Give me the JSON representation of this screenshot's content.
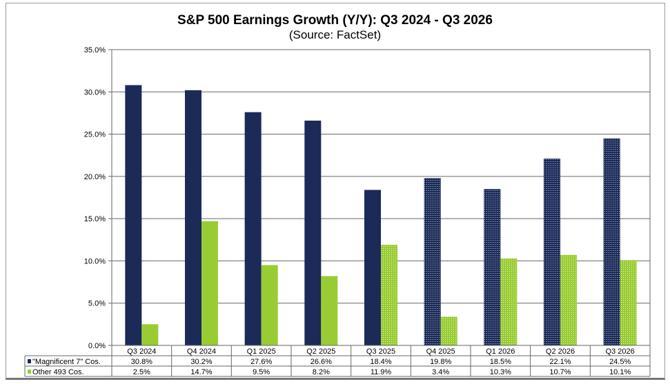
{
  "chart_data": {
    "type": "bar",
    "title": "S&P 500 Earnings Growth (Y/Y): Q3 2024 - Q3 2026",
    "subtitle": "(Source: FactSet)",
    "xlabel": "",
    "ylabel": "",
    "ylim": [
      0,
      35
    ],
    "yticks": [
      "0.0%",
      "5.0%",
      "10.0%",
      "15.0%",
      "20.0%",
      "25.0%",
      "30.0%",
      "35.0%"
    ],
    "grid": true,
    "legend": "data-table-bottom",
    "categories": [
      "Q3 2024",
      "Q4 2024",
      "Q1 2025",
      "Q2 2025",
      "Q3 2025",
      "Q4 2025",
      "Q1 2026",
      "Q2 2026",
      "Q3 2026"
    ],
    "series": [
      {
        "name": "\"Magnificent 7\" Cos.",
        "color": "#1b2a57",
        "values": [
          30.8,
          30.2,
          27.6,
          26.6,
          18.4,
          19.8,
          18.5,
          22.1,
          24.5
        ],
        "labels": [
          "30.8%",
          "30.2%",
          "27.6%",
          "26.6%",
          "18.4%",
          "19.8%",
          "18.5%",
          "22.1%",
          "24.5%"
        ],
        "estimate_from_index": 5
      },
      {
        "name": "Other 493 Cos.",
        "color": "#99cc33",
        "values": [
          2.5,
          14.7,
          9.5,
          8.2,
          11.9,
          3.4,
          10.3,
          10.7,
          10.1
        ],
        "labels": [
          "2.5%",
          "14.7%",
          "9.5%",
          "8.2%",
          "11.9%",
          "3.4%",
          "10.3%",
          "10.7%",
          "10.1%"
        ],
        "estimate_from_index": 4
      }
    ]
  }
}
